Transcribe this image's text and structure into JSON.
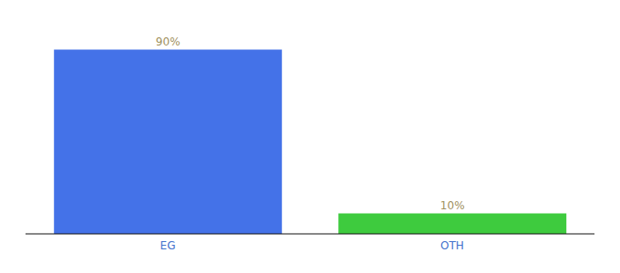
{
  "chart_data": {
    "type": "bar",
    "categories": [
      "EG",
      "OTH"
    ],
    "values": [
      90,
      10
    ],
    "colors": [
      "#4472e8",
      "#3ecb3e"
    ],
    "value_labels": [
      "90%",
      "10%"
    ],
    "data_labels": true,
    "ylim": [
      0,
      100
    ],
    "tick_labels": "x",
    "grid": false
  }
}
